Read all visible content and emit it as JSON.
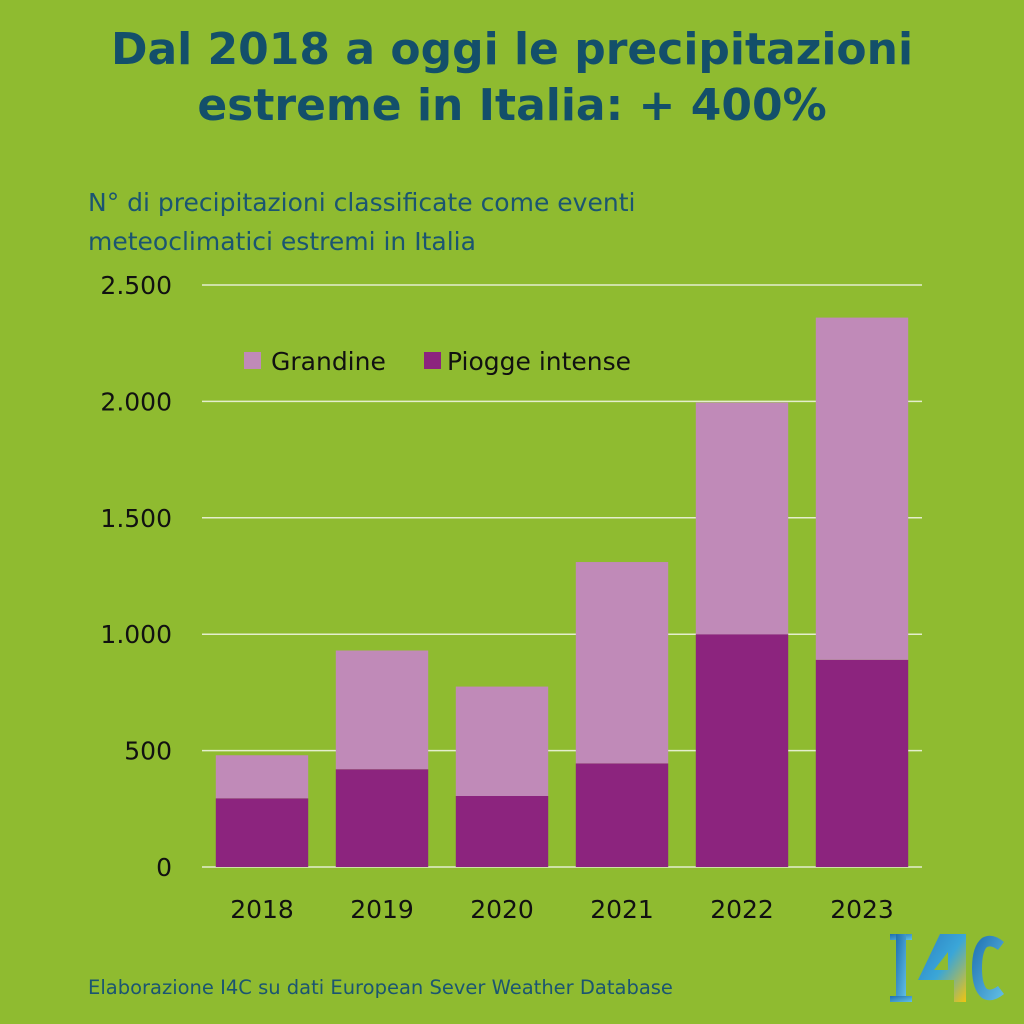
{
  "title_lines": [
    "Dal 2018 a oggi le precipitazioni",
    "estreme in Italia: + 400%"
  ],
  "subtitle_lines": [
    "N° di precipitazioni classificate come eventi",
    "meteoclimatici estremi in Italia"
  ],
  "source": "Elaborazione I4C su dati European Sever Weather Database",
  "logo": {
    "text": "I4C",
    "icon": "i4c-logo-icon"
  },
  "chart_data": {
    "type": "bar",
    "stacked": true,
    "categories": [
      "2018",
      "2019",
      "2020",
      "2021",
      "2022",
      "2023"
    ],
    "series": [
      {
        "name": "Piogge intense",
        "values": [
          295,
          420,
          305,
          445,
          1000,
          890
        ],
        "color": "#8c247e"
      },
      {
        "name": "Grandine",
        "values": [
          185,
          510,
          470,
          865,
          995,
          1470
        ],
        "color": "#c08ab8"
      }
    ],
    "ylim": [
      0,
      2500
    ],
    "yticks": [
      0,
      500,
      1000,
      1500,
      2000,
      2500
    ],
    "ytick_labels": [
      "0",
      "500",
      "1.000",
      "1.500",
      "2.000",
      "2.500"
    ],
    "grid": true,
    "legend": {
      "placement": "top-left",
      "order": [
        "Grandine",
        "Piogge intense"
      ]
    },
    "colors": {
      "background": "#8fbb30",
      "gridline": "#e4eecd",
      "text": "#111111"
    }
  }
}
